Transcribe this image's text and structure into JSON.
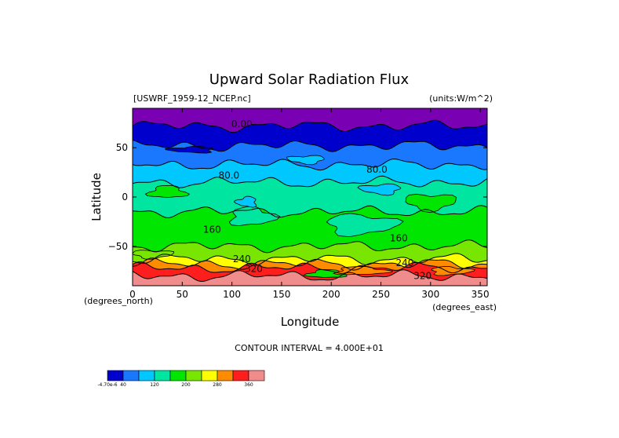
{
  "chart_data": {
    "type": "heatmap",
    "title": "Upward Solar Radiation Flux",
    "file_label": "[USWRF_1959-12_NCEP.nc]",
    "units_label": "(units:W/m^2)",
    "xlabel": "Longitude",
    "ylabel": "Latitude",
    "x_unit_note": "(degrees_east)",
    "y_unit_note": "(degrees_north)",
    "xlim": [
      0,
      357
    ],
    "ylim": [
      -90,
      90
    ],
    "x_ticks": [
      {
        "value": 0,
        "label": "0"
      },
      {
        "value": 50,
        "label": "50"
      },
      {
        "value": 100,
        "label": "100"
      },
      {
        "value": 150,
        "label": "150"
      },
      {
        "value": 200,
        "label": "200"
      },
      {
        "value": 250,
        "label": "250"
      },
      {
        "value": 300,
        "label": "300"
      },
      {
        "value": 350,
        "label": "350"
      }
    ],
    "y_ticks": [
      {
        "value": 50,
        "label": "50"
      },
      {
        "value": 0,
        "label": "0"
      },
      {
        "value": -50,
        "label": "−50"
      }
    ],
    "contour_interval_text": "CONTOUR INTERVAL = 4.000E+01",
    "contour_labels": [
      {
        "text": "0.00",
        "lon": 110,
        "lat": 74
      },
      {
        "text": "80.0",
        "lon": 97,
        "lat": 22
      },
      {
        "text": "80.0",
        "lon": 246,
        "lat": 28
      },
      {
        "text": "160",
        "lon": 80,
        "lat": -33
      },
      {
        "text": "160",
        "lon": 268,
        "lat": -42
      },
      {
        "text": "240",
        "lon": 110,
        "lat": -63
      },
      {
        "text": "240",
        "lon": 274,
        "lat": -67
      },
      {
        "text": "320",
        "lon": 122,
        "lat": -73
      },
      {
        "text": "320",
        "lon": 292,
        "lat": -80
      }
    ],
    "colorbar": {
      "levels": [
        0,
        40,
        80,
        120,
        160,
        200,
        240,
        280,
        320,
        360
      ],
      "tick_labels": [
        {
          "index": 0,
          "label": "-4.70e-6"
        },
        {
          "index": 1,
          "label": "40"
        },
        {
          "index": 3,
          "label": "120"
        },
        {
          "index": 5,
          "label": "200"
        },
        {
          "index": 7,
          "label": "280"
        },
        {
          "index": 9,
          "label": "360"
        }
      ],
      "colors": [
        "#0000cc",
        "#1a78ff",
        "#00c8ff",
        "#00e6a0",
        "#00e600",
        "#78e600",
        "#ffff00",
        "#ff8c00",
        "#ff1e1e",
        "#f08c8c"
      ]
    },
    "bands": [
      {
        "lat_top": 90,
        "lat_bottom": 72,
        "color": "#7a00b4"
      },
      {
        "lat_top": 72,
        "lat_bottom": 52,
        "color": "#0000cc"
      },
      {
        "lat_top": 52,
        "lat_bottom": 33,
        "color": "#1a78ff"
      },
      {
        "lat_top": 33,
        "lat_bottom": 15,
        "color": "#00c8ff"
      },
      {
        "lat_top": 15,
        "lat_bottom": -15,
        "color": "#00e6a0"
      },
      {
        "lat_top": -15,
        "lat_bottom": -50,
        "color": "#00e600"
      },
      {
        "lat_top": -50,
        "lat_bottom": -63,
        "color": "#78e600"
      },
      {
        "lat_top": -63,
        "lat_bottom": -68,
        "color": "#ffff00"
      },
      {
        "lat_top": -68,
        "lat_bottom": -72,
        "color": "#ff8c00"
      },
      {
        "lat_top": -72,
        "lat_bottom": -80,
        "color": "#ff1e1e"
      },
      {
        "lat_top": -80,
        "lat_bottom": -90,
        "color": "#f08c8c"
      }
    ],
    "boundaries": [
      72,
      52,
      33,
      15,
      -15,
      -50,
      -63,
      -68,
      -72,
      -80
    ],
    "patches": [
      {
        "lon": 35,
        "lat": 5,
        "rlon": 18,
        "rlat": 6,
        "color": "#00e600"
      },
      {
        "lon": 120,
        "lat": -20,
        "rlon": 22,
        "rlat": 9,
        "color": "#00e6a0"
      },
      {
        "lon": 230,
        "lat": -28,
        "rlon": 35,
        "rlat": 10,
        "color": "#00e6a0"
      },
      {
        "lon": 300,
        "lat": -5,
        "rlon": 25,
        "rlat": 8,
        "color": "#00e600"
      },
      {
        "lon": 250,
        "lat": 8,
        "rlon": 20,
        "rlat": 5,
        "color": "#00c8ff"
      },
      {
        "lon": 115,
        "lat": -5,
        "rlon": 10,
        "rlat": 5,
        "color": "#00c8ff"
      },
      {
        "lon": 195,
        "lat": -78,
        "rlon": 18,
        "rlat": 4,
        "color": "#00e600"
      },
      {
        "lon": 230,
        "lat": -75,
        "rlon": 25,
        "rlat": 4,
        "color": "#ff8c00"
      },
      {
        "lon": 320,
        "lat": -75,
        "rlon": 20,
        "rlat": 4,
        "color": "#ff8c00"
      },
      {
        "lon": 20,
        "lat": -58,
        "rlon": 20,
        "rlat": 4,
        "color": "#78e600"
      },
      {
        "lon": 175,
        "lat": 38,
        "rlon": 18,
        "rlat": 4,
        "color": "#00c8ff"
      },
      {
        "lon": 60,
        "lat": 48,
        "rlon": 22,
        "rlat": 3,
        "color": "#0000cc"
      }
    ]
  }
}
